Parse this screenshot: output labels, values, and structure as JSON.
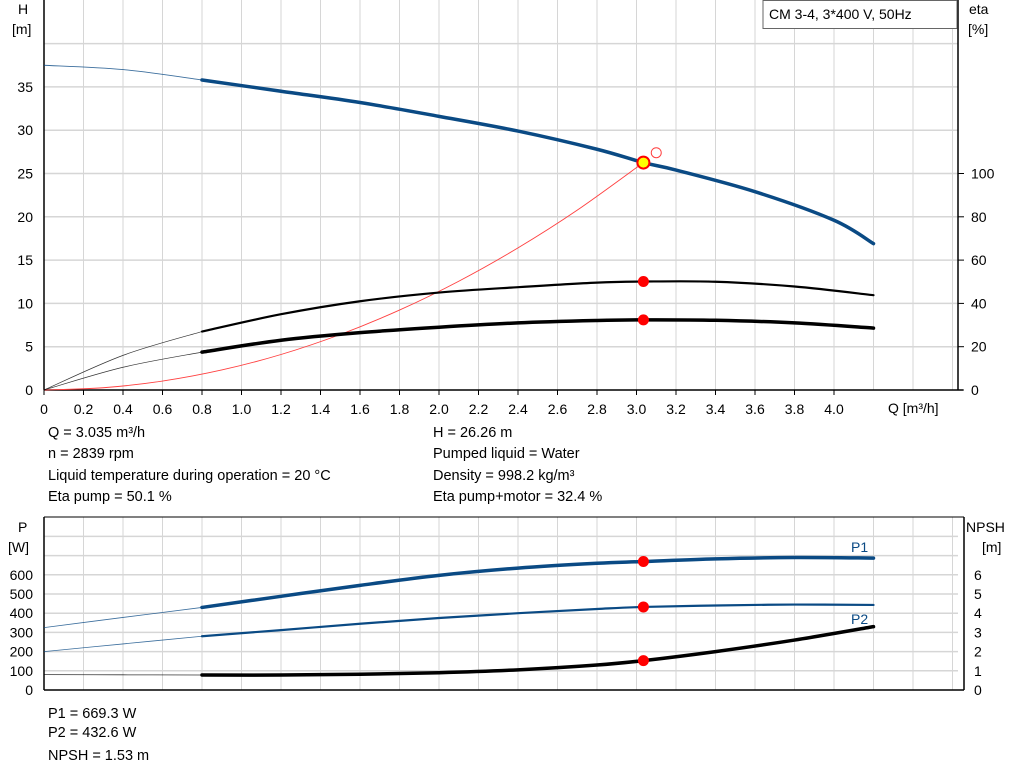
{
  "legend_box": "CM 3-4, 3*400 V, 50Hz",
  "colors": {
    "head": "#0a4a84",
    "eta": "#000000",
    "system": "#ff4040",
    "duty_point": "#ff0000",
    "duty_point_fill": "#ffff00",
    "grid": "#d6d6d6"
  },
  "chart_data": [
    {
      "type": "line",
      "xlabel": "Q [m³/h]",
      "ylabel_left": [
        "H",
        "[m]"
      ],
      "ylabel_right": [
        "eta",
        "[%]"
      ],
      "x_ticks": [
        "0",
        "0.2",
        "0.4",
        "0.6",
        "0.8",
        "1.0",
        "1.2",
        "1.4",
        "1.6",
        "1.8",
        "2.0",
        "2.2",
        "2.4",
        "2.6",
        "2.8",
        "3.0",
        "3.2",
        "3.4",
        "3.6",
        "3.8",
        "4.0"
      ],
      "y_left_ticks": [
        "0",
        "5",
        "10",
        "15",
        "20",
        "25",
        "30",
        "35"
      ],
      "y_right_ticks": [
        "0",
        "20",
        "40",
        "60",
        "80",
        "100"
      ],
      "xlim": [
        0,
        4.6
      ],
      "ylim_left": [
        0,
        45
      ],
      "ylim_right": [
        0,
        180
      ],
      "grid": true,
      "series": [
        {
          "key": "H",
          "axis": "left",
          "x": [
            0,
            0.4,
            0.8,
            1.2,
            1.6,
            2.0,
            2.4,
            2.8,
            3.035,
            3.2,
            3.6,
            4.0,
            4.2
          ],
          "y": [
            37.5,
            37.0,
            35.8,
            34.5,
            33.2,
            31.6,
            29.9,
            27.8,
            26.26,
            25.4,
            22.9,
            19.6,
            16.9
          ]
        },
        {
          "key": "eta_pump",
          "axis": "right",
          "x": [
            0,
            0.4,
            0.8,
            1.2,
            1.6,
            2.0,
            2.4,
            2.8,
            3.035,
            3.4,
            3.8,
            4.2
          ],
          "y": [
            0,
            16,
            27,
            35,
            41,
            45,
            47.5,
            49.6,
            50.1,
            50,
            47.8,
            43.8
          ]
        },
        {
          "key": "eta_pump_motor",
          "axis": "right",
          "x": [
            0,
            0.4,
            0.8,
            1.2,
            1.6,
            2.0,
            2.4,
            2.8,
            3.035,
            3.4,
            3.8,
            4.2
          ],
          "y": [
            0,
            10.5,
            17.5,
            23,
            26.5,
            29,
            31,
            32.1,
            32.4,
            32.2,
            31,
            28.6
          ]
        },
        {
          "key": "system_curve",
          "axis": "left",
          "x": [
            0,
            0.3,
            0.6,
            0.9,
            1.2,
            1.5,
            1.8,
            2.1,
            2.4,
            2.7,
            3.035
          ],
          "y": [
            0,
            0.26,
            1.03,
            2.31,
            4.1,
            6.41,
            9.23,
            12.56,
            16.41,
            20.77,
            26.26
          ]
        }
      ],
      "duty_point": {
        "Q": 3.035,
        "H": 26.26,
        "eta_pump": 50.1,
        "eta_pump_motor": 32.4
      },
      "requested_point": {
        "Q": 3.1,
        "H": 27.4
      }
    },
    {
      "type": "line",
      "ylabel_left": [
        "P",
        "[W]"
      ],
      "ylabel_right": [
        "NPSH",
        "[m]"
      ],
      "y_left_ticks": [
        "0",
        "100",
        "200",
        "300",
        "400",
        "500",
        "600"
      ],
      "y_right_ticks": [
        "0",
        "1",
        "2",
        "3",
        "4",
        "5",
        "6"
      ],
      "xlim": [
        0,
        4.6
      ],
      "ylim_left": [
        0,
        900
      ],
      "ylim_right": [
        0,
        9
      ],
      "grid": true,
      "series": [
        {
          "key": "P1",
          "name": "P1",
          "axis": "left",
          "x": [
            0,
            0.4,
            0.8,
            1.2,
            1.6,
            2.0,
            2.4,
            2.8,
            3.035,
            3.4,
            3.8,
            4.2
          ],
          "y": [
            325,
            378,
            430,
            488,
            545,
            597,
            635,
            660,
            669,
            683,
            690,
            687
          ]
        },
        {
          "key": "P2",
          "name": "P2",
          "axis": "left",
          "x": [
            0,
            0.4,
            0.8,
            1.2,
            1.6,
            2.0,
            2.4,
            2.8,
            3.035,
            3.4,
            3.8,
            4.2
          ],
          "y": [
            200,
            240,
            280,
            312,
            345,
            375,
            400,
            422,
            432.6,
            440,
            445,
            443
          ]
        },
        {
          "key": "NPSH",
          "axis": "right",
          "x": [
            0,
            0.4,
            0.8,
            1.2,
            1.6,
            2.0,
            2.4,
            2.8,
            3.035,
            3.4,
            3.8,
            4.2
          ],
          "y": [
            0.8,
            0.79,
            0.78,
            0.78,
            0.82,
            0.9,
            1.05,
            1.3,
            1.53,
            2.0,
            2.6,
            3.3
          ]
        }
      ],
      "duty_point": {
        "Q": 3.035,
        "P1": 669.3,
        "P2": 432.6,
        "NPSH": 1.53
      }
    }
  ],
  "info": {
    "q": "Q = 3.035 m³/h",
    "n": "n = 2839 rpm",
    "temp": "Liquid temperature during operation = 20 °C",
    "eta_pump": "Eta pump = 50.1 %",
    "h": "H = 26.26 m",
    "liquid": "Pumped liquid = Water",
    "density": "Density = 998.2 kg/m³",
    "eta_pm": "Eta pump+motor = 32.4 %",
    "p1": "P1 = 669.3 W",
    "p2": "P2 = 432.6 W",
    "npsh": "NPSH = 1.53 m"
  }
}
